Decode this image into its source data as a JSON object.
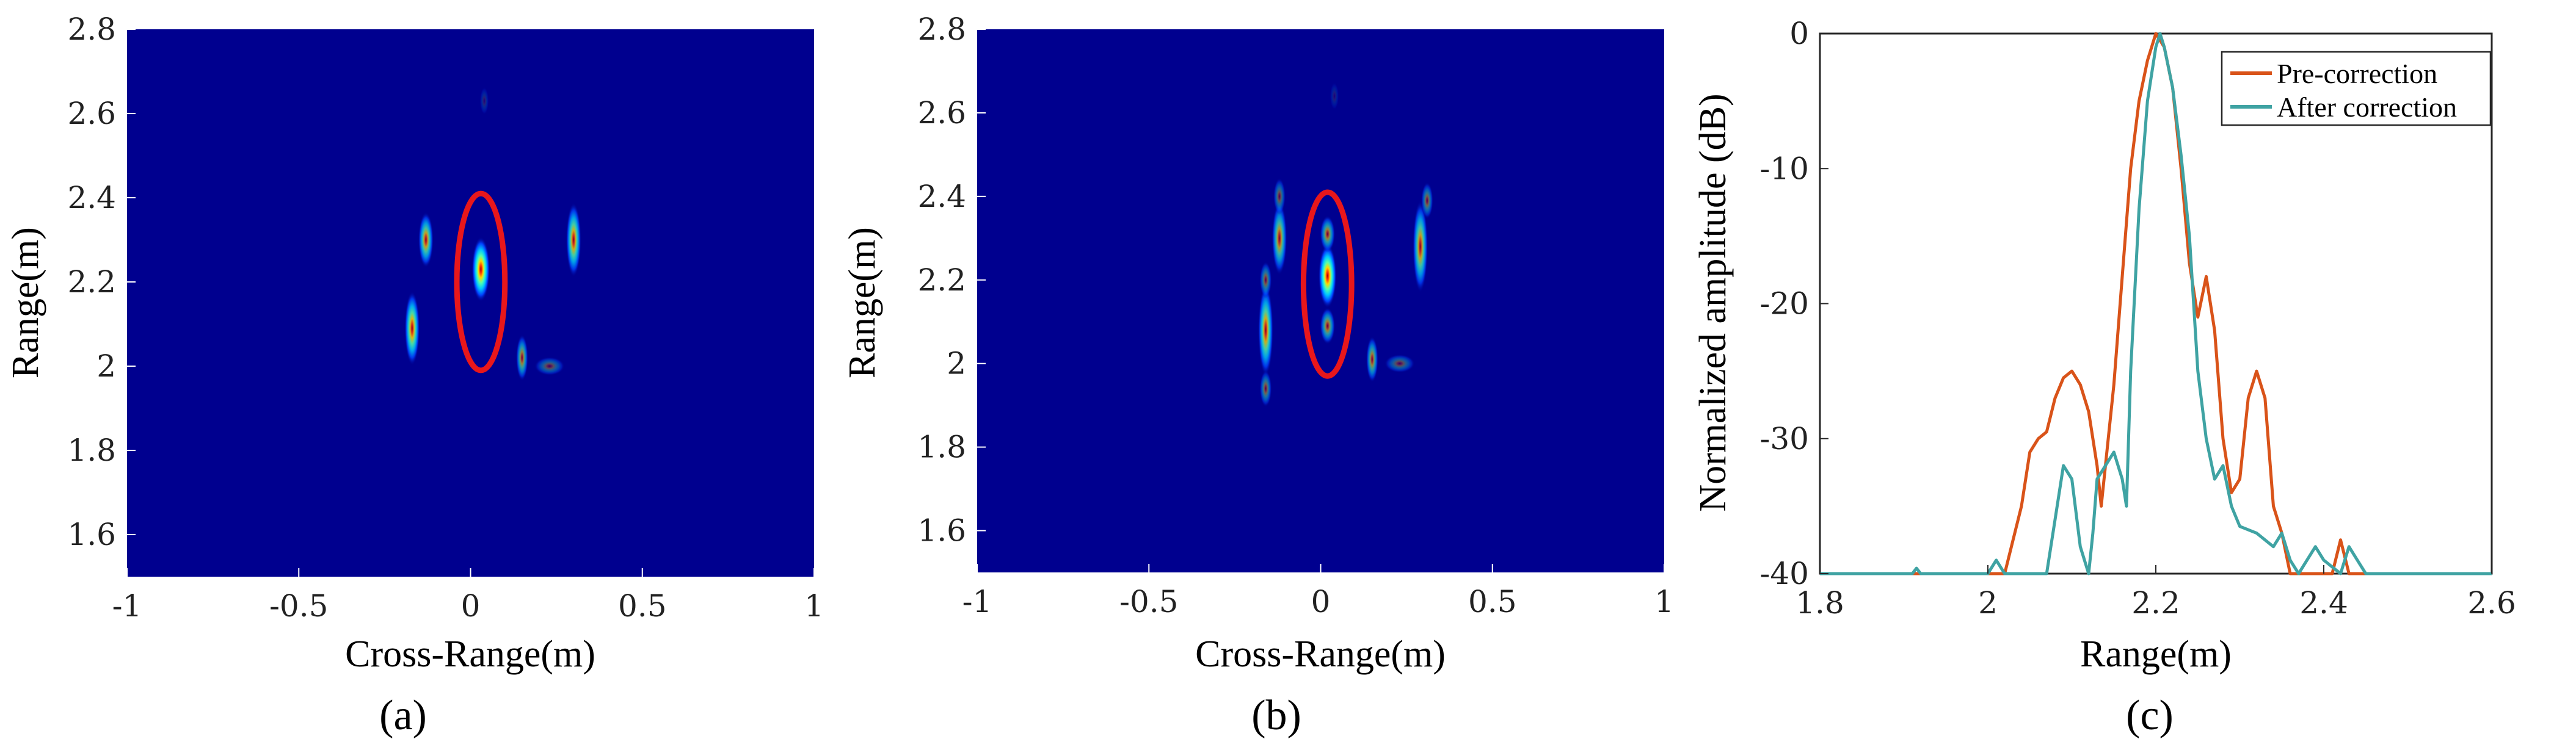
{
  "chart_data": [
    {
      "type": "heatmap",
      "caption": "(a)",
      "xlabel": "Cross-Range(m)",
      "ylabel": "Range(m)",
      "xlim": [
        -1,
        1
      ],
      "ylim": [
        1.5,
        2.8
      ],
      "xticks": [
        "-1",
        "-0.5",
        "0",
        "0.5",
        "1"
      ],
      "yticks": [
        "1.6",
        "1.8",
        "2",
        "2.2",
        "2.4",
        "2.6",
        "2.8"
      ],
      "background_color": "#00008f",
      "highlight_ellipse": {
        "cx": 0.03,
        "cy": 2.2,
        "rx": 0.07,
        "ry": 0.21,
        "color": "#e8171b"
      },
      "scatterers": [
        {
          "x": 0.03,
          "y": 2.23,
          "sx": 0.012,
          "sy": 0.035,
          "intensity": 1.0
        },
        {
          "x": -0.13,
          "y": 2.3,
          "sx": 0.01,
          "sy": 0.03,
          "intensity": 0.75
        },
        {
          "x": 0.3,
          "y": 2.3,
          "sx": 0.01,
          "sy": 0.04,
          "intensity": 0.8
        },
        {
          "x": -0.17,
          "y": 2.09,
          "sx": 0.01,
          "sy": 0.04,
          "intensity": 0.85
        },
        {
          "x": 0.15,
          "y": 2.02,
          "sx": 0.008,
          "sy": 0.025,
          "intensity": 0.6
        },
        {
          "x": 0.23,
          "y": 2.0,
          "sx": 0.02,
          "sy": 0.01,
          "intensity": 0.35
        },
        {
          "x": 0.04,
          "y": 2.63,
          "sx": 0.006,
          "sy": 0.015,
          "intensity": 0.15
        }
      ]
    },
    {
      "type": "heatmap",
      "caption": "(b)",
      "xlabel": "Cross-Range(m)",
      "ylabel": "Range(m)",
      "xlim": [
        -1,
        1
      ],
      "ylim": [
        1.5,
        2.8
      ],
      "xticks": [
        "-1",
        "-0.5",
        "0",
        "0.5",
        "1"
      ],
      "yticks": [
        "1.6",
        "1.8",
        "2",
        "2.2",
        "2.4",
        "2.6",
        "2.8"
      ],
      "background_color": "#00008f",
      "highlight_ellipse": {
        "cx": 0.02,
        "cy": 2.19,
        "rx": 0.07,
        "ry": 0.22,
        "color": "#e8171b"
      },
      "scatterers": [
        {
          "x": 0.02,
          "y": 2.21,
          "sx": 0.012,
          "sy": 0.035,
          "intensity": 1.0
        },
        {
          "x": 0.02,
          "y": 2.31,
          "sx": 0.01,
          "sy": 0.02,
          "intensity": 0.6
        },
        {
          "x": 0.02,
          "y": 2.09,
          "sx": 0.01,
          "sy": 0.02,
          "intensity": 0.6
        },
        {
          "x": -0.12,
          "y": 2.3,
          "sx": 0.01,
          "sy": 0.04,
          "intensity": 0.7
        },
        {
          "x": -0.12,
          "y": 2.4,
          "sx": 0.008,
          "sy": 0.02,
          "intensity": 0.4
        },
        {
          "x": 0.29,
          "y": 2.28,
          "sx": 0.01,
          "sy": 0.05,
          "intensity": 0.75
        },
        {
          "x": 0.31,
          "y": 2.39,
          "sx": 0.008,
          "sy": 0.02,
          "intensity": 0.45
        },
        {
          "x": -0.16,
          "y": 2.08,
          "sx": 0.01,
          "sy": 0.05,
          "intensity": 0.8
        },
        {
          "x": -0.16,
          "y": 1.94,
          "sx": 0.008,
          "sy": 0.02,
          "intensity": 0.45
        },
        {
          "x": -0.16,
          "y": 2.2,
          "sx": 0.008,
          "sy": 0.02,
          "intensity": 0.45
        },
        {
          "x": 0.15,
          "y": 2.01,
          "sx": 0.008,
          "sy": 0.025,
          "intensity": 0.6
        },
        {
          "x": 0.23,
          "y": 2.0,
          "sx": 0.02,
          "sy": 0.01,
          "intensity": 0.35
        },
        {
          "x": 0.04,
          "y": 2.64,
          "sx": 0.006,
          "sy": 0.015,
          "intensity": 0.12
        }
      ]
    },
    {
      "type": "line",
      "caption": "(c)",
      "xlabel": "Range(m)",
      "ylabel": "Normalized amplitude (dB)",
      "xlim": [
        1.8,
        2.6
      ],
      "ylim": [
        -40,
        0
      ],
      "xticks": [
        "1.8",
        "2",
        "2.2",
        "2.4",
        "2.6"
      ],
      "yticks": [
        "0",
        "-10",
        "-20",
        "-30",
        "-40"
      ],
      "legend_position": "top-right",
      "series": [
        {
          "name": "Pre-correction",
          "color": "#d95319",
          "points": [
            [
              1.8,
              -40
            ],
            [
              2.02,
              -40
            ],
            [
              2.04,
              -35
            ],
            [
              2.05,
              -31
            ],
            [
              2.06,
              -30
            ],
            [
              2.07,
              -29.5
            ],
            [
              2.08,
              -27
            ],
            [
              2.09,
              -25.5
            ],
            [
              2.1,
              -25
            ],
            [
              2.11,
              -26
            ],
            [
              2.12,
              -28
            ],
            [
              2.13,
              -32
            ],
            [
              2.135,
              -35
            ],
            [
              2.14,
              -32
            ],
            [
              2.15,
              -26
            ],
            [
              2.16,
              -18
            ],
            [
              2.17,
              -10
            ],
            [
              2.18,
              -5
            ],
            [
              2.19,
              -2
            ],
            [
              2.2,
              0
            ],
            [
              2.21,
              -1
            ],
            [
              2.22,
              -4
            ],
            [
              2.23,
              -10
            ],
            [
              2.24,
              -17
            ],
            [
              2.25,
              -21
            ],
            [
              2.26,
              -18
            ],
            [
              2.27,
              -22
            ],
            [
              2.28,
              -30
            ],
            [
              2.29,
              -34
            ],
            [
              2.3,
              -33
            ],
            [
              2.31,
              -27
            ],
            [
              2.32,
              -25
            ],
            [
              2.33,
              -27
            ],
            [
              2.34,
              -35
            ],
            [
              2.35,
              -37
            ],
            [
              2.36,
              -40
            ],
            [
              2.41,
              -40
            ],
            [
              2.42,
              -37.5
            ],
            [
              2.43,
              -40
            ],
            [
              2.6,
              -40
            ]
          ]
        },
        {
          "name": "After correction",
          "color": "#3fa3a3",
          "points": [
            [
              1.8,
              -40
            ],
            [
              1.91,
              -40
            ],
            [
              1.915,
              -39.6
            ],
            [
              1.92,
              -40
            ],
            [
              2.0,
              -40
            ],
            [
              2.01,
              -39
            ],
            [
              2.02,
              -40
            ],
            [
              2.07,
              -40
            ],
            [
              2.08,
              -36
            ],
            [
              2.09,
              -32
            ],
            [
              2.1,
              -33
            ],
            [
              2.11,
              -38
            ],
            [
              2.12,
              -40
            ],
            [
              2.125,
              -37
            ],
            [
              2.13,
              -33
            ],
            [
              2.14,
              -32
            ],
            [
              2.15,
              -31
            ],
            [
              2.16,
              -33
            ],
            [
              2.165,
              -35
            ],
            [
              2.17,
              -25
            ],
            [
              2.18,
              -13
            ],
            [
              2.19,
              -5
            ],
            [
              2.2,
              -1
            ],
            [
              2.205,
              0
            ],
            [
              2.21,
              -1
            ],
            [
              2.22,
              -4
            ],
            [
              2.23,
              -9
            ],
            [
              2.24,
              -15
            ],
            [
              2.25,
              -25
            ],
            [
              2.26,
              -30
            ],
            [
              2.27,
              -33
            ],
            [
              2.28,
              -32
            ],
            [
              2.29,
              -35
            ],
            [
              2.3,
              -36.5
            ],
            [
              2.32,
              -37
            ],
            [
              2.34,
              -38
            ],
            [
              2.35,
              -37
            ],
            [
              2.36,
              -39
            ],
            [
              2.37,
              -40
            ],
            [
              2.38,
              -39
            ],
            [
              2.39,
              -38
            ],
            [
              2.4,
              -39
            ],
            [
              2.42,
              -40
            ],
            [
              2.43,
              -38
            ],
            [
              2.44,
              -39
            ],
            [
              2.45,
              -40
            ],
            [
              2.6,
              -40
            ]
          ]
        }
      ]
    }
  ]
}
